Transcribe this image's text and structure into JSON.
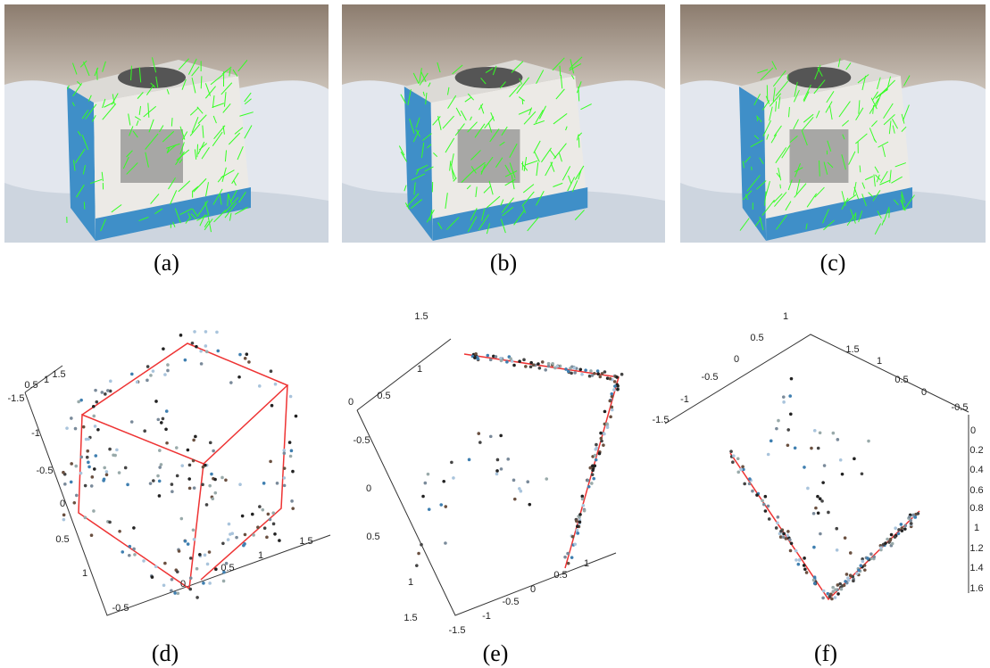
{
  "panels": [
    {
      "label": "(a)"
    },
    {
      "label": "(b)"
    },
    {
      "label": "(c)"
    },
    {
      "label": "(d)",
      "ticks": [
        "0.5",
        "1",
        "1.5",
        "-1.5",
        "-1",
        "-0.5",
        "0",
        "0.5",
        "1",
        "-0.5",
        "0",
        "0.5",
        "1",
        "1.5"
      ]
    },
    {
      "label": "(e)",
      "ticks": [
        "1.5",
        "1",
        "0.5",
        "0",
        "-0.5",
        "0",
        "0.5",
        "1",
        "1.5",
        "-1.5",
        "-1",
        "-0.5",
        "0",
        "0.5",
        "1"
      ]
    },
    {
      "label": "(f)",
      "ticks": [
        "1",
        "0.5",
        "0",
        "-0.5",
        "-1",
        "-1.5",
        "1.5",
        "1",
        "0.5",
        "0",
        "-0.5",
        "0",
        "0.2",
        "0.4",
        "0.6",
        "0.8",
        "1",
        "1.2",
        "1.4",
        "1.6"
      ]
    }
  ]
}
